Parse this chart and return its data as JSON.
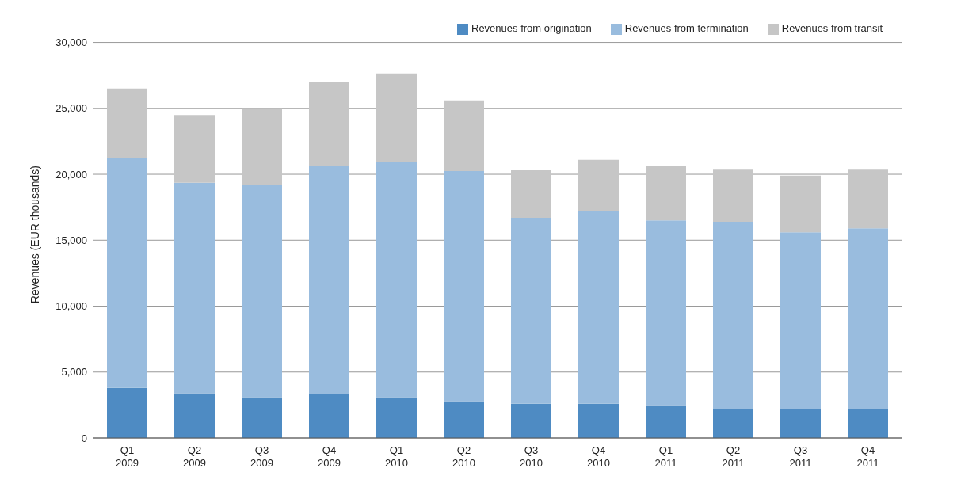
{
  "chart_data": {
    "type": "bar",
    "ylabel": "Revenues (EUR thousands)",
    "categories": [
      "Q1\n2009",
      "Q2\n2009",
      "Q3\n2009",
      "Q4\n2009",
      "Q1\n2010",
      "Q2\n2010",
      "Q3\n2010",
      "Q4\n2010",
      "Q1\n2011",
      "Q2\n2011",
      "Q3\n2011",
      "Q4\n2011"
    ],
    "stacked": true,
    "series": [
      {
        "name": "Revenues from origination",
        "color": "#4e8bc3",
        "values": [
          3800,
          3400,
          3100,
          3300,
          3100,
          2800,
          2600,
          2600,
          2500,
          2200,
          2200,
          2200
        ]
      },
      {
        "name": "Revenues from termination",
        "color": "#99bcde",
        "values": [
          17400,
          15950,
          16100,
          17300,
          17800,
          17450,
          14100,
          14600,
          14000,
          14200,
          13400,
          13700
        ]
      },
      {
        "name": "Revenues from transit",
        "color": "#c6c6c6",
        "values": [
          5300,
          5150,
          5800,
          6400,
          6750,
          5350,
          3600,
          3900,
          4100,
          3950,
          4300,
          4450
        ]
      }
    ],
    "ylim": [
      0,
      30000
    ],
    "yticks": [
      {
        "value": 0,
        "label": "0"
      },
      {
        "value": 5000,
        "label": "5,000"
      },
      {
        "value": 10000,
        "label": "10,000"
      },
      {
        "value": 15000,
        "label": "15,000"
      },
      {
        "value": 20000,
        "label": "20,000"
      },
      {
        "value": 25000,
        "label": "25,000"
      },
      {
        "value": 30000,
        "label": "30,000"
      }
    ],
    "grid": "y",
    "legend": "top right"
  }
}
